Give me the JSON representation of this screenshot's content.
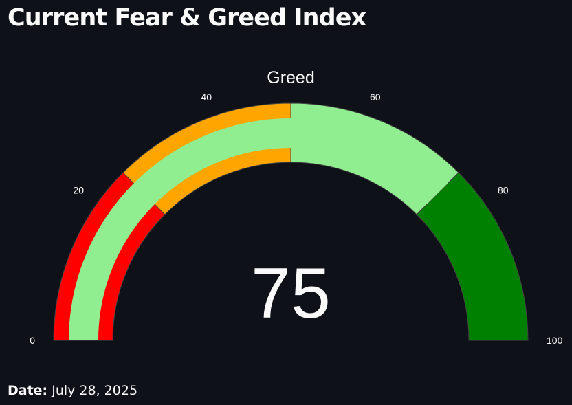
{
  "page": {
    "title": "Current Fear & Greed Index",
    "date_label": "Date:",
    "date_value": "July 28, 2025"
  },
  "chart_data": {
    "type": "gauge",
    "title": "Greed",
    "value": 75,
    "range": [
      0,
      100
    ],
    "ticks": [
      0,
      20,
      40,
      60,
      80,
      100
    ],
    "steps": [
      {
        "range": [
          0,
          25
        ],
        "color": "#ff0000"
      },
      {
        "range": [
          25,
          50
        ],
        "color": "#ffa500"
      },
      {
        "range": [
          50,
          75
        ],
        "color": "#90ee90"
      },
      {
        "range": [
          75,
          100
        ],
        "color": "#008000"
      }
    ],
    "bar": {
      "value": 75,
      "color": "#90ee90"
    },
    "background": "#0e1117",
    "text_color": "#fafafa"
  }
}
